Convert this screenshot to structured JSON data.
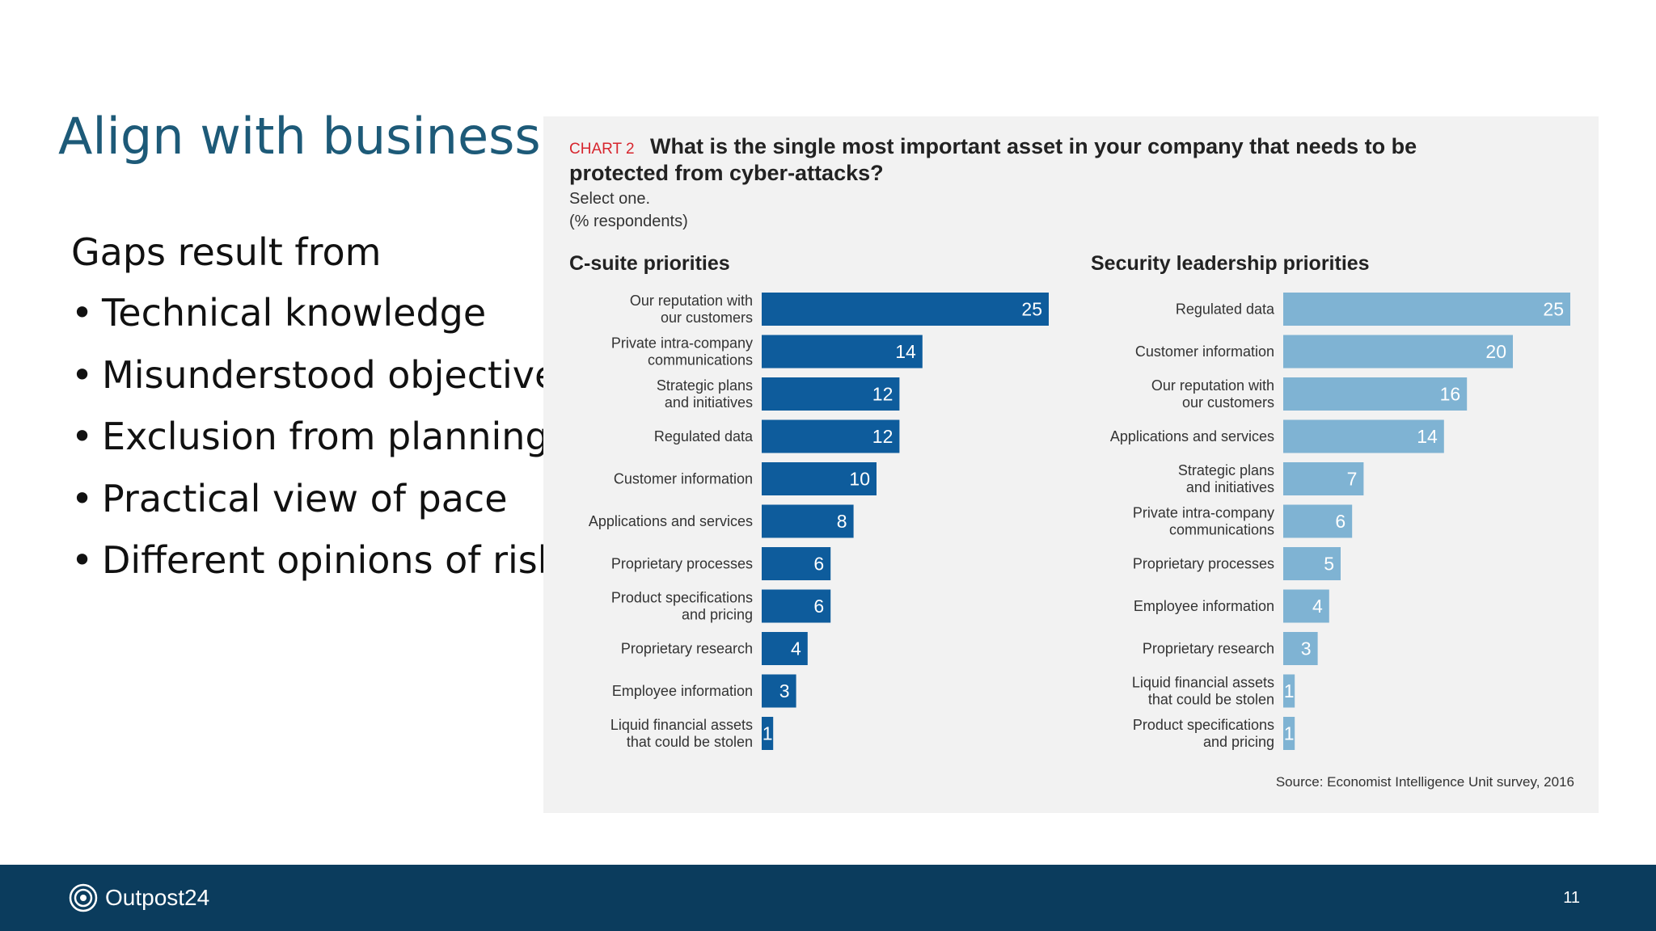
{
  "slide": {
    "title": "Align with business",
    "gaps_heading": "Gaps result from",
    "bullets": [
      "Technical knowledge",
      "Misunderstood objectives",
      "Exclusion from planning",
      "Practical view of pace",
      "Different opinions of risk"
    ],
    "bullet_char": "•"
  },
  "footer": {
    "logo_text": "Outpost24",
    "page_number": "11",
    "background": "#0b3c5d"
  },
  "chart_data": {
    "type": "bar",
    "orientation": "horizontal",
    "chart_tag": "CHART 2",
    "title_line1": "What is the single most important asset in your company that needs to be",
    "title_line2": "protected from cyber-attacks?",
    "subtitle_line1": "Select one.",
    "subtitle_line2": "(% respondents)",
    "source": "Source: Economist Intelligence Unit survey, 2016",
    "xlim": [
      0,
      25
    ],
    "grid": false,
    "panels": [
      {
        "title": "C-suite priorities",
        "color": "#0e5c9c",
        "categories": [
          [
            "Our reputation with",
            "our customers"
          ],
          [
            "Private intra-company",
            "communications"
          ],
          [
            "Strategic plans",
            "and initiatives"
          ],
          [
            "Regulated data"
          ],
          [
            "Customer information"
          ],
          [
            "Applications and services"
          ],
          [
            "Proprietary processes"
          ],
          [
            "Product specifications",
            "and pricing"
          ],
          [
            "Proprietary research"
          ],
          [
            "Employee information"
          ],
          [
            "Liquid financial assets",
            "that could be stolen"
          ]
        ],
        "values": [
          25,
          14,
          12,
          12,
          10,
          8,
          6,
          6,
          4,
          3,
          1
        ]
      },
      {
        "title": "Security leadership priorities",
        "color": "#7fb3d3",
        "categories": [
          [
            "Regulated data"
          ],
          [
            "Customer information"
          ],
          [
            "Our reputation with",
            "our customers"
          ],
          [
            "Applications and services"
          ],
          [
            "Strategic plans",
            "and initiatives"
          ],
          [
            "Private intra-company",
            "communications"
          ],
          [
            "Proprietary processes"
          ],
          [
            "Employee information"
          ],
          [
            "Proprietary research"
          ],
          [
            "Liquid financial assets",
            "that could be stolen"
          ],
          [
            "Product specifications",
            "and pricing"
          ]
        ],
        "values": [
          25,
          20,
          16,
          14,
          7,
          6,
          5,
          4,
          3,
          1,
          1
        ]
      }
    ]
  }
}
